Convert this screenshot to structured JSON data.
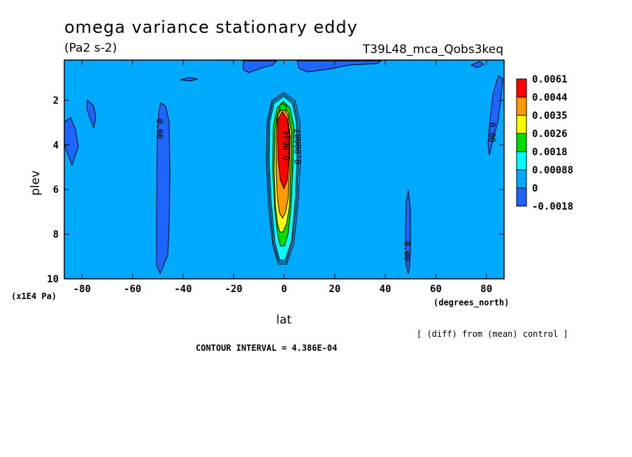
{
  "chart_data": {
    "type": "heatmap",
    "title": "omega variance stationary eddy",
    "units": "(Pa2 s-2)",
    "experiment": "T39L48_mca_Qobs3keq",
    "xlabel": "lat",
    "xunits": "(degrees_north)",
    "ylabel": "plev",
    "yunits": "(x1E4 Pa)",
    "xlim": [
      -87,
      87
    ],
    "ylim": [
      10,
      0.2
    ],
    "x_ticks": [
      -80,
      -60,
      -40,
      -20,
      0,
      20,
      40,
      60,
      80
    ],
    "y_ticks": [
      2,
      4,
      6,
      8,
      10
    ],
    "x_tick_labels": [
      "-80",
      "-60",
      "-40",
      "-20",
      "0",
      "20",
      "40",
      "60",
      "80"
    ],
    "y_tick_labels": [
      "2",
      "4",
      "6",
      "8",
      "10"
    ],
    "colorbar_labels": [
      "0.0061",
      "0.0044",
      "0.0035",
      "0.0026",
      "0.0018",
      "0.00088",
      "0",
      "-0.0018"
    ],
    "colorbar_colors": [
      "#ff0000",
      "#ff9a00",
      "#ffff00",
      "#00dd00",
      "#00ffff",
      "#00aaff",
      "#1e64ff"
    ],
    "background_level_color": "#00aaff",
    "contour_labels": [
      "0.00",
      "0.00",
      "0.00",
      "0.0044",
      "0.00087"
    ],
    "diff_note": "[ (diff) from (mean) control ]",
    "contour_interval": "CONTOUR INTERVAL = 4.386E-04",
    "features": [
      {
        "name": "equatorial maximum",
        "lat": 0,
        "plev_range": [
          2,
          9.2
        ],
        "peak": 0.0061
      },
      {
        "name": "negative band",
        "lat": -50,
        "plev_range": [
          2,
          9.8
        ],
        "value": -0.0018
      },
      {
        "name": "negative band",
        "lat": 49,
        "plev_range": [
          6,
          9.8
        ],
        "value": -0.0018
      },
      {
        "name": "negative band",
        "lat": -85,
        "plev_range": [
          2.6,
          4.8
        ],
        "value": -0.0018
      },
      {
        "name": "negative band",
        "lat": 85,
        "plev_range": [
          1,
          4.3
        ],
        "value": -0.0018
      }
    ]
  }
}
